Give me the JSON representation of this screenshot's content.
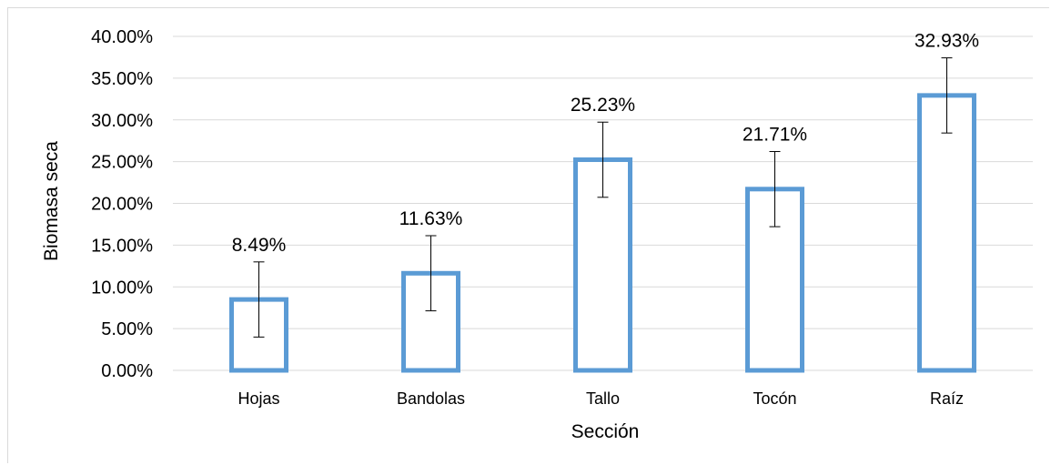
{
  "chart_data": {
    "type": "bar",
    "xlabel": "Sección",
    "ylabel": "Biomasa seca",
    "categories": [
      "Hojas",
      "Bandolas",
      "Tallo",
      "Tocón",
      "Raíz"
    ],
    "values": [
      8.49,
      11.63,
      25.23,
      21.71,
      32.93
    ],
    "value_labels": [
      "8.49%",
      "11.63%",
      "25.23%",
      "21.71%",
      "32.93%"
    ],
    "error": [
      4.5,
      4.5,
      4.5,
      4.5,
      4.5
    ],
    "ylim": [
      0,
      40
    ],
    "yticks": [
      0,
      5,
      10,
      15,
      20,
      25,
      30,
      35,
      40
    ],
    "ytick_labels": [
      "0.00%",
      "5.00%",
      "10.00%",
      "15.00%",
      "20.00%",
      "25.00%",
      "30.00%",
      "35.00%",
      "40.00%"
    ],
    "grid": true,
    "legend": "none",
    "bar_style": "outline",
    "bar_color": "#5b9bd5"
  }
}
